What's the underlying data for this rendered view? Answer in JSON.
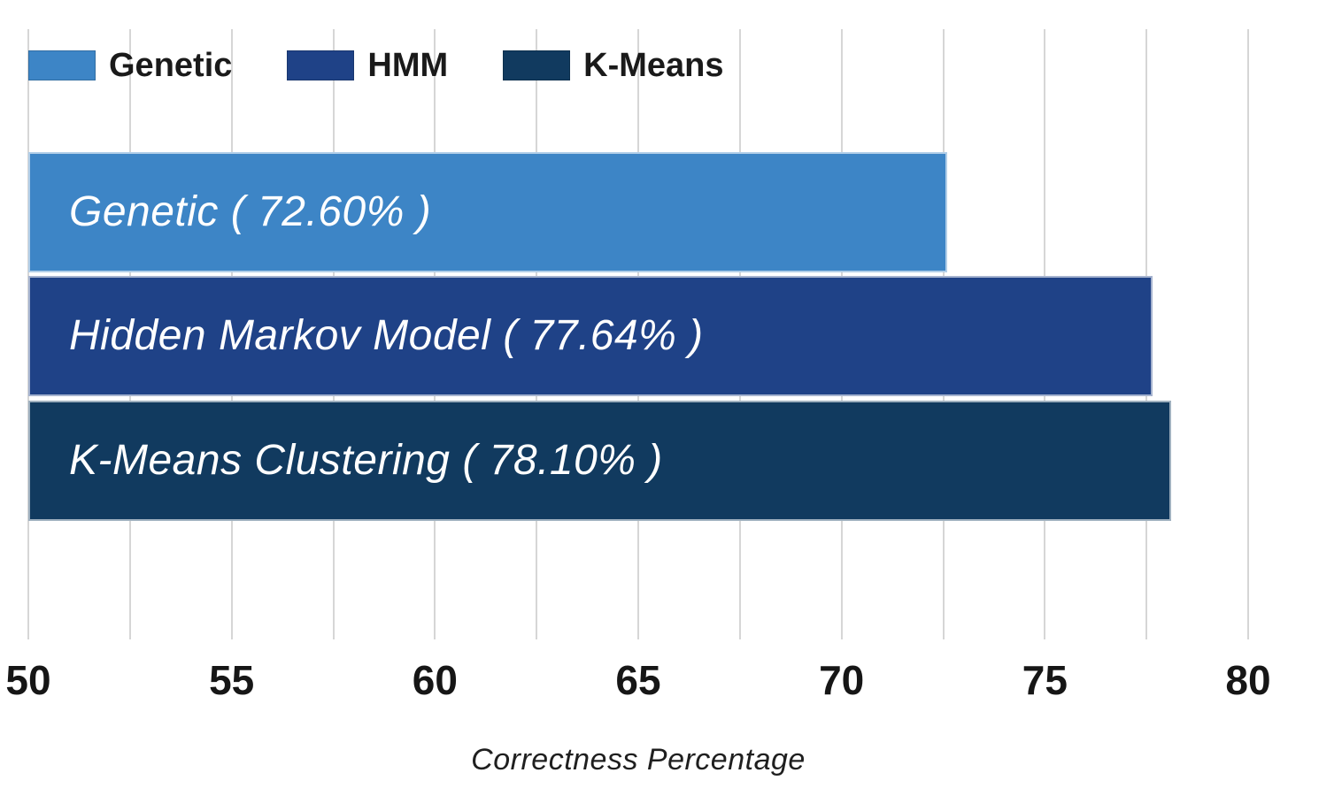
{
  "chart_data": {
    "type": "bar",
    "orientation": "horizontal",
    "xlabel": "Correctness Percentage",
    "ylabel": "",
    "xlim": [
      50,
      80
    ],
    "x_major_ticks": [
      50,
      55,
      60,
      65,
      70,
      75,
      80
    ],
    "x_minor_step": 2.5,
    "grid": true,
    "background_color": "#ffffff",
    "gridline_color": "#d6d6d6",
    "legend": {
      "position": "top-left",
      "entries": [
        {
          "label": "Genetic",
          "color": "#3d85c6"
        },
        {
          "label": "HMM",
          "color": "#1f4287"
        },
        {
          "label": "K-Means",
          "color": "#113a5f"
        }
      ]
    },
    "categories": [
      "Genetic",
      "Hidden Markov Model",
      "K-Means Clustering"
    ],
    "values": [
      72.6,
      77.64,
      78.1
    ],
    "bars": [
      {
        "name": "Genetic",
        "bar_label": "Genetic ( 72.60% )",
        "value": 72.6,
        "color": "#3d85c6"
      },
      {
        "name": "HMM",
        "bar_label": "Hidden Markov Model ( 77.64% )",
        "value": 77.64,
        "color": "#1f4287"
      },
      {
        "name": "K-Means",
        "bar_label": "K-Means Clustering ( 78.10% )",
        "value": 78.1,
        "color": "#113a5f"
      }
    ]
  }
}
